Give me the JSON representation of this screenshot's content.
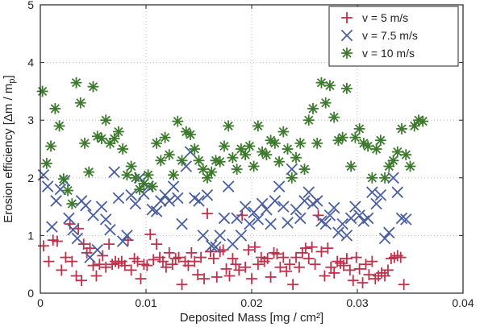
{
  "chart_data": {
    "type": "scatter",
    "title": "",
    "xlabel": "Deposited Mass [mg / cm²]",
    "ylabel": "Erosion efficiency [Δm / m",
    "ylabel_subscript": "p",
    "ylabel_close": "]",
    "xlim": [
      0,
      0.04
    ],
    "ylim": [
      0,
      5
    ],
    "xticks": [
      "0",
      "0.01",
      "0.02",
      "0.03",
      "0.04"
    ],
    "yticks": [
      "0",
      "1",
      "2",
      "3",
      "4",
      "5"
    ],
    "grid": true,
    "legend_position": "top-right",
    "series": [
      {
        "name": "v = 5 m/s",
        "marker": "plus",
        "color": "#c0304a",
        "points": [
          [
            0.0003,
            0.82
          ],
          [
            0.0008,
            0.55
          ],
          [
            0.0012,
            0.92
          ],
          [
            0.0016,
            0.9
          ],
          [
            0.002,
            0.4
          ],
          [
            0.0024,
            0.62
          ],
          [
            0.0028,
            1.2
          ],
          [
            0.003,
            0.55
          ],
          [
            0.0034,
            0.3
          ],
          [
            0.0036,
            1.12
          ],
          [
            0.0039,
            0.22
          ],
          [
            0.0041,
            0.85
          ],
          [
            0.0044,
            0.7
          ],
          [
            0.0047,
            0.78
          ],
          [
            0.005,
            0.48
          ],
          [
            0.0053,
            0.3
          ],
          [
            0.0056,
            0.5
          ],
          [
            0.0059,
            0.65
          ],
          [
            0.0062,
            0.45
          ],
          [
            0.0065,
            0.85
          ],
          [
            0.0068,
            0.5
          ],
          [
            0.0071,
            0.55
          ],
          [
            0.0074,
            0.52
          ],
          [
            0.0077,
            0.55
          ],
          [
            0.008,
            0.48
          ],
          [
            0.0083,
            0.92
          ],
          [
            0.0086,
            0.4
          ],
          [
            0.0089,
            0.6
          ],
          [
            0.0092,
            0.55
          ],
          [
            0.0095,
            0.25
          ],
          [
            0.0098,
            0.5
          ],
          [
            0.0101,
            0.48
          ],
          [
            0.0104,
            1.02
          ],
          [
            0.0107,
            0.58
          ],
          [
            0.011,
            0.85
          ],
          [
            0.0113,
            0.62
          ],
          [
            0.0116,
            0.55
          ],
          [
            0.0119,
            0.45
          ],
          [
            0.0122,
            0.7
          ],
          [
            0.0125,
            0.5
          ],
          [
            0.0128,
            0.6
          ],
          [
            0.0131,
            0.62
          ],
          [
            0.0134,
            0.15
          ],
          [
            0.0137,
            0.55
          ],
          [
            0.014,
            0.48
          ],
          [
            0.0143,
            0.7
          ],
          [
            0.0146,
            0.55
          ],
          [
            0.0149,
            0.32
          ],
          [
            0.0152,
            0.62
          ],
          [
            0.0155,
            0.25
          ],
          [
            0.0158,
            1.38
          ],
          [
            0.0161,
            0.72
          ],
          [
            0.0164,
            0.6
          ],
          [
            0.0167,
            0.28
          ],
          [
            0.017,
            0.72
          ],
          [
            0.0173,
            0.75
          ],
          [
            0.0176,
            0.42
          ],
          [
            0.0179,
            0.3
          ],
          [
            0.0182,
            0.6
          ],
          [
            0.0185,
            0.5
          ],
          [
            0.0188,
            0.4
          ],
          [
            0.0191,
            1.35
          ],
          [
            0.0194,
            0.45
          ],
          [
            0.0197,
            0.75
          ],
          [
            0.02,
            0.25
          ],
          [
            0.0203,
            0.8
          ],
          [
            0.0206,
            0.5
          ],
          [
            0.0209,
            0.62
          ],
          [
            0.0212,
            0.55
          ],
          [
            0.0215,
            0.6
          ],
          [
            0.0218,
            0.28
          ],
          [
            0.0221,
            0.7
          ],
          [
            0.0224,
            0.68
          ],
          [
            0.0227,
            0.45
          ],
          [
            0.023,
            0.62
          ],
          [
            0.0233,
            0.38
          ],
          [
            0.0236,
            0.5
          ],
          [
            0.0239,
            0.15
          ],
          [
            0.0242,
            0.62
          ],
          [
            0.0245,
            0.45
          ],
          [
            0.0248,
            0.7
          ],
          [
            0.0251,
            0.78
          ],
          [
            0.0254,
            0.6
          ],
          [
            0.0257,
            0.8
          ],
          [
            0.026,
            0.5
          ],
          [
            0.0263,
            1.35
          ],
          [
            0.0266,
            0.72
          ],
          [
            0.0269,
            0.3
          ],
          [
            0.0272,
            0.78
          ],
          [
            0.0275,
            0.45
          ],
          [
            0.0278,
            0.35
          ],
          [
            0.0281,
            0.55
          ],
          [
            0.0284,
            0.52
          ],
          [
            0.0287,
            0.48
          ],
          [
            0.029,
            0.6
          ],
          [
            0.0293,
            0.4
          ],
          [
            0.0296,
            0.22
          ],
          [
            0.0299,
            0.62
          ],
          [
            0.0302,
            0.42
          ],
          [
            0.0305,
            0.18
          ],
          [
            0.0308,
            0.5
          ],
          [
            0.0311,
            0.32
          ],
          [
            0.0314,
            0.55
          ],
          [
            0.0317,
            0.25
          ],
          [
            0.032,
            0.3
          ],
          [
            0.0323,
            0.35
          ],
          [
            0.0326,
            0.3
          ],
          [
            0.0329,
            0.4
          ],
          [
            0.0332,
            0.6
          ],
          [
            0.0335,
            0.62
          ],
          [
            0.0338,
            0.65
          ],
          [
            0.0341,
            0.62
          ],
          [
            0.0344,
            0.15
          ]
        ]
      },
      {
        "name": "v = 7.5 m/s",
        "marker": "x",
        "color": "#4a5fa0",
        "points": [
          [
            0.0003,
            2.05
          ],
          [
            0.0007,
            1.85
          ],
          [
            0.0011,
            1.15
          ],
          [
            0.0015,
            1.6
          ],
          [
            0.0019,
            1.8
          ],
          [
            0.0023,
            1.95
          ],
          [
            0.0027,
            1.3
          ],
          [
            0.0031,
            1.1
          ],
          [
            0.0035,
            0.95
          ],
          [
            0.0039,
            1.6
          ],
          [
            0.0043,
            1.52
          ],
          [
            0.0047,
            0.62
          ],
          [
            0.005,
            1.35
          ],
          [
            0.0054,
            0.75
          ],
          [
            0.0058,
            1.5
          ],
          [
            0.0062,
            1.28
          ],
          [
            0.0066,
            1.1
          ],
          [
            0.007,
            2.1
          ],
          [
            0.0074,
            1.65
          ],
          [
            0.0078,
            0.9
          ],
          [
            0.0082,
            1.0
          ],
          [
            0.0086,
            1.7
          ],
          [
            0.009,
            1.55
          ],
          [
            0.0094,
            2.0
          ],
          [
            0.0098,
            1.72
          ],
          [
            0.0102,
            1.85
          ],
          [
            0.0106,
            1.45
          ],
          [
            0.011,
            1.42
          ],
          [
            0.0114,
            1.6
          ],
          [
            0.0118,
            1.7
          ],
          [
            0.0122,
            1.6
          ],
          [
            0.0126,
            1.85
          ],
          [
            0.013,
            1.65
          ],
          [
            0.0134,
            1.2
          ],
          [
            0.0138,
            2.2
          ],
          [
            0.0142,
            2.45
          ],
          [
            0.0146,
            1.65
          ],
          [
            0.015,
            1.6
          ],
          [
            0.0154,
            1.0
          ],
          [
            0.0158,
            1.7
          ],
          [
            0.0162,
            0.82
          ],
          [
            0.0166,
            0.8
          ],
          [
            0.017,
            1.0
          ],
          [
            0.0174,
            1.3
          ],
          [
            0.0178,
            1.85
          ],
          [
            0.0182,
            0.85
          ],
          [
            0.0186,
            1.3
          ],
          [
            0.019,
            1.0
          ],
          [
            0.0194,
            1.5
          ],
          [
            0.0198,
            1.2
          ],
          [
            0.0202,
            1.4
          ],
          [
            0.0206,
            1.28
          ],
          [
            0.021,
            1.55
          ],
          [
            0.0214,
            1.45
          ],
          [
            0.0218,
            1.2
          ],
          [
            0.0222,
            1.6
          ],
          [
            0.0226,
            1.85
          ],
          [
            0.023,
            1.5
          ],
          [
            0.0234,
            1.22
          ],
          [
            0.0238,
            2.15
          ],
          [
            0.0242,
            1.45
          ],
          [
            0.0246,
            1.3
          ],
          [
            0.025,
            1.6
          ],
          [
            0.0254,
            1.75
          ],
          [
            0.0258,
            1.55
          ],
          [
            0.0262,
            1.6
          ],
          [
            0.0266,
            1.25
          ],
          [
            0.027,
            1.2
          ],
          [
            0.0274,
            1.35
          ],
          [
            0.0278,
            1.48
          ],
          [
            0.0282,
            1.05
          ],
          [
            0.0286,
            1.2
          ],
          [
            0.029,
            1.0
          ],
          [
            0.0294,
            1.3
          ],
          [
            0.0298,
            1.5
          ],
          [
            0.0302,
            1.35
          ],
          [
            0.0306,
            1.25
          ],
          [
            0.031,
            1.3
          ],
          [
            0.0314,
            1.75
          ],
          [
            0.0318,
            1.55
          ],
          [
            0.0322,
            1.7
          ],
          [
            0.0326,
            0.95
          ],
          [
            0.033,
            1.05
          ],
          [
            0.0334,
            2.0
          ],
          [
            0.0338,
            1.75
          ],
          [
            0.0342,
            1.3
          ],
          [
            0.0346,
            1.28
          ]
        ]
      },
      {
        "name": "v = 10 m/s",
        "marker": "asterisk",
        "color": "#3e7a2e",
        "points": [
          [
            0.0002,
            3.5
          ],
          [
            0.0006,
            2.25
          ],
          [
            0.001,
            2.55
          ],
          [
            0.0014,
            3.2
          ],
          [
            0.0018,
            2.9
          ],
          [
            0.0022,
            1.98
          ],
          [
            0.0026,
            1.78
          ],
          [
            0.003,
            1.55
          ],
          [
            0.0034,
            3.65
          ],
          [
            0.0038,
            3.3
          ],
          [
            0.0042,
            2.6
          ],
          [
            0.0046,
            2.1
          ],
          [
            0.005,
            3.58
          ],
          [
            0.0054,
            2.72
          ],
          [
            0.0058,
            2.68
          ],
          [
            0.0062,
            3.0
          ],
          [
            0.0066,
            2.6
          ],
          [
            0.007,
            2.68
          ],
          [
            0.0074,
            2.8
          ],
          [
            0.0078,
            2.5
          ],
          [
            0.0082,
            2.05
          ],
          [
            0.0086,
            2.2
          ],
          [
            0.009,
            2.0
          ],
          [
            0.0094,
            1.8
          ],
          [
            0.0098,
            1.9
          ],
          [
            0.0102,
            2.05
          ],
          [
            0.0106,
            1.85
          ],
          [
            0.011,
            2.6
          ],
          [
            0.0114,
            2.3
          ],
          [
            0.0118,
            2.7
          ],
          [
            0.0122,
            2.4
          ],
          [
            0.0126,
            2.05
          ],
          [
            0.013,
            2.98
          ],
          [
            0.0134,
            2.3
          ],
          [
            0.0138,
            2.8
          ],
          [
            0.0142,
            2.75
          ],
          [
            0.0146,
            2.5
          ],
          [
            0.015,
            2.3
          ],
          [
            0.0154,
            2.15
          ],
          [
            0.0158,
            2.0
          ],
          [
            0.0162,
            2.1
          ],
          [
            0.0166,
            2.3
          ],
          [
            0.017,
            2.28
          ],
          [
            0.0174,
            2.55
          ],
          [
            0.0178,
            2.9
          ],
          [
            0.0182,
            2.35
          ],
          [
            0.0186,
            2.15
          ],
          [
            0.019,
            2.5
          ],
          [
            0.0194,
            2.4
          ],
          [
            0.0198,
            2.55
          ],
          [
            0.0202,
            2.2
          ],
          [
            0.0206,
            2.9
          ],
          [
            0.021,
            2.45
          ],
          [
            0.0214,
            2.4
          ],
          [
            0.0218,
            2.65
          ],
          [
            0.0222,
            2.6
          ],
          [
            0.0226,
            2.28
          ],
          [
            0.023,
            2.8
          ],
          [
            0.0234,
            2.5
          ],
          [
            0.0238,
            2.0
          ],
          [
            0.0242,
            2.35
          ],
          [
            0.0246,
            2.6
          ],
          [
            0.025,
            2.15
          ],
          [
            0.0254,
            3.0
          ],
          [
            0.0258,
            3.2
          ],
          [
            0.0262,
            2.6
          ],
          [
            0.0266,
            3.65
          ],
          [
            0.027,
            3.3
          ],
          [
            0.0274,
            3.6
          ],
          [
            0.0278,
            3.05
          ],
          [
            0.0282,
            2.65
          ],
          [
            0.0286,
            2.7
          ],
          [
            0.029,
            3.55
          ],
          [
            0.0294,
            2.2
          ],
          [
            0.0298,
            2.7
          ],
          [
            0.0302,
            2.85
          ],
          [
            0.0306,
            2.6
          ],
          [
            0.031,
            2.55
          ],
          [
            0.0314,
            2.0
          ],
          [
            0.0318,
            2.5
          ],
          [
            0.0322,
            2.65
          ],
          [
            0.0326,
            2.0
          ],
          [
            0.033,
            2.2
          ],
          [
            0.0334,
            2.3
          ],
          [
            0.0338,
            2.45
          ],
          [
            0.0342,
            2.85
          ],
          [
            0.0346,
            2.4
          ],
          [
            0.035,
            2.2
          ],
          [
            0.0354,
            2.9
          ],
          [
            0.0358,
            3.0
          ],
          [
            0.0362,
            2.98
          ]
        ]
      }
    ]
  }
}
